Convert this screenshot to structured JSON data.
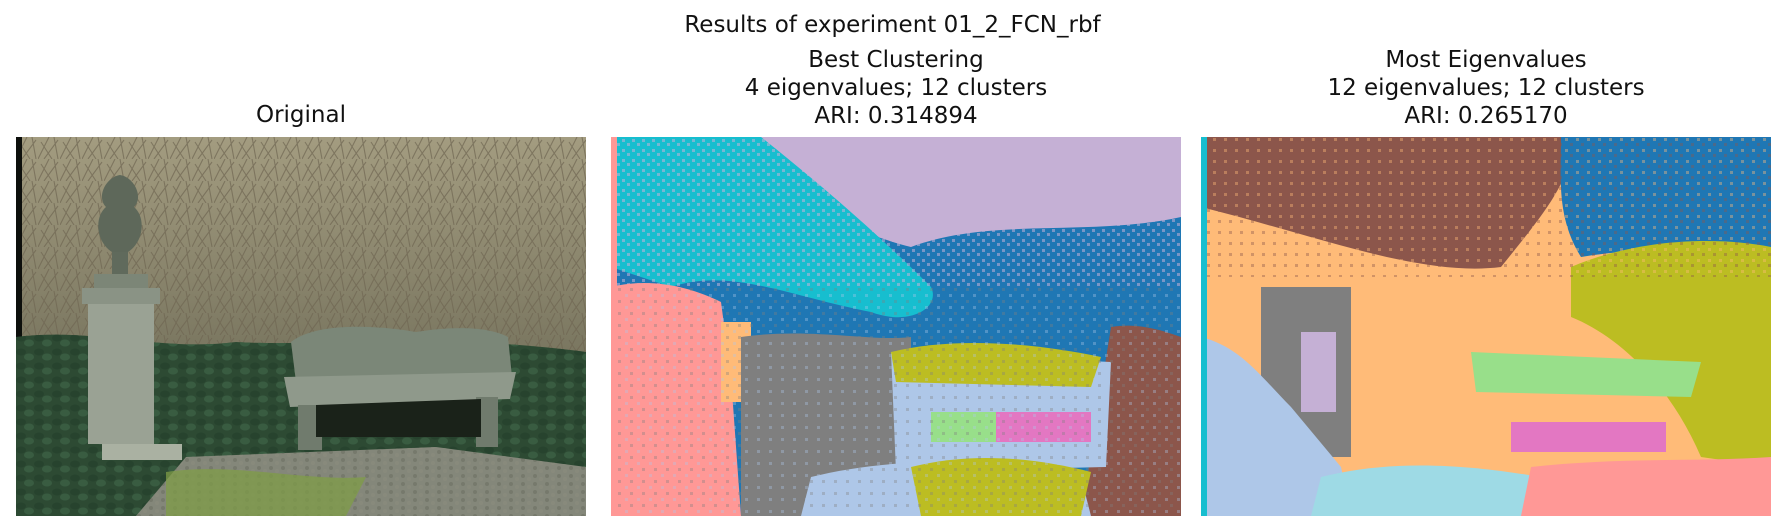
{
  "figure": {
    "suptitle": "Results of experiment 01_2_FCN_rbf"
  },
  "panels": [
    {
      "id": "original",
      "title_lines": [
        "Original"
      ],
      "content": "photograph"
    },
    {
      "id": "best",
      "title_lines": [
        "Best Clustering",
        "4 eigenvalues; 12 clusters",
        "ARI: 0.314894"
      ],
      "content": "cluster-map",
      "eigenvalues": 4,
      "clusters": 12,
      "ari": 0.314894
    },
    {
      "id": "most",
      "title_lines": [
        "Most Eigenvalues",
        "12 eigenvalues; 12 clusters",
        "ARI: 0.265170"
      ],
      "content": "cluster-map",
      "eigenvalues": 12,
      "clusters": 12,
      "ari": 0.26517
    }
  ],
  "chart_data": [
    {
      "type": "heatmap",
      "title": "Original",
      "content": "photograph of a stone garden bench and urn pedestal in front of ivy and bare shrubs"
    },
    {
      "type": "heatmap",
      "title": "Best Clustering",
      "eigenvalues": 4,
      "clusters": 12,
      "ari": 0.314894
    },
    {
      "type": "heatmap",
      "title": "Most Eigenvalues",
      "eigenvalues": 12,
      "clusters": 12,
      "ari": 0.26517
    }
  ],
  "colors": {
    "tab_blue": "#1f77b4",
    "tab_orange_light": "#ffbb78",
    "tab_red_light": "#ff9896",
    "tab_purple_light": "#c5b0d5",
    "tab_brown": "#8c564b",
    "tab_pink": "#e377c2",
    "tab_gray": "#7f7f7f",
    "tab_olive": "#bcbd22",
    "tab_cyan": "#17becf",
    "tab_blue_light": "#aec7e8",
    "tab_green_light": "#98df8a",
    "tab_cyan_light": "#9edae5"
  }
}
